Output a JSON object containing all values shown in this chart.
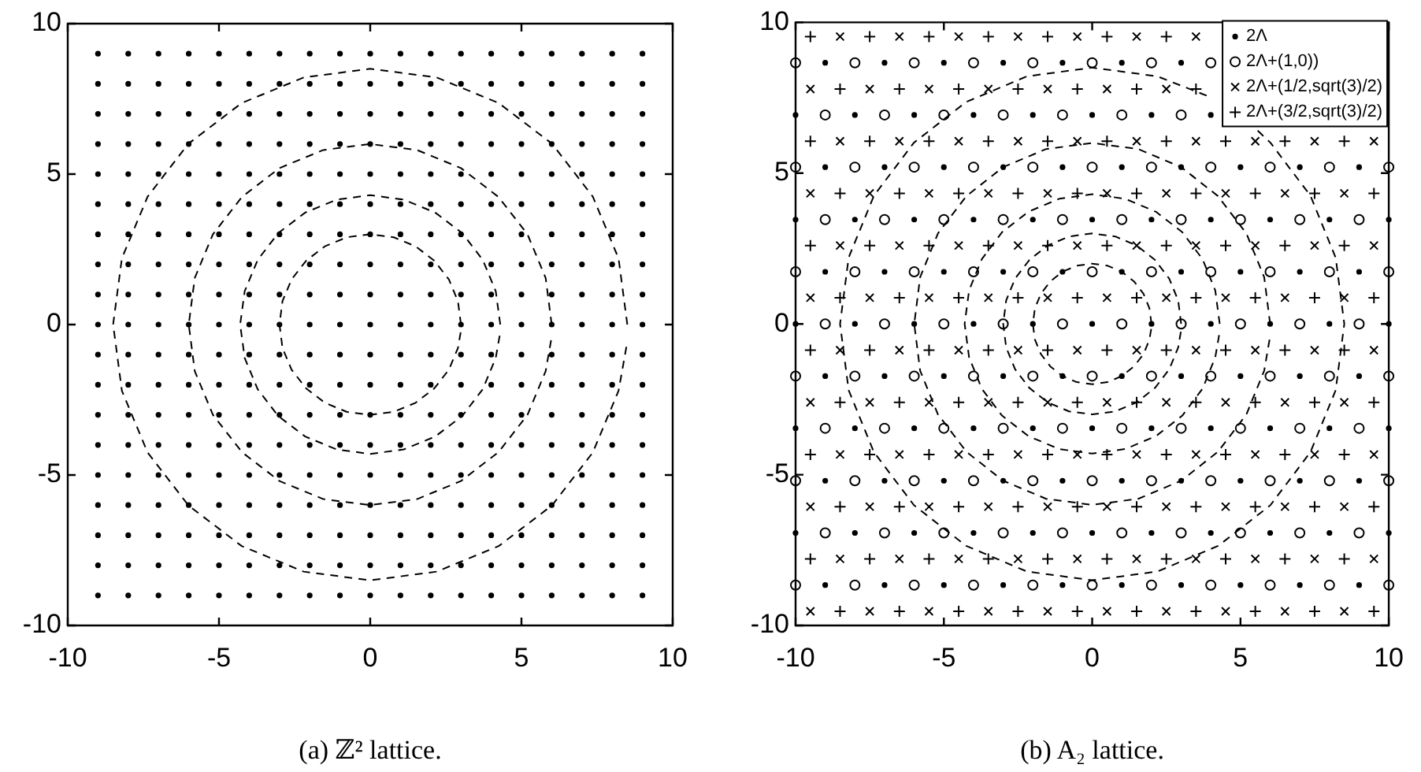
{
  "chart_data": [
    {
      "type": "scatter",
      "annotations": [
        "(a) ℤ² lattice."
      ],
      "xlim": [
        -10,
        10
      ],
      "ylim": [
        -10,
        10
      ],
      "xticks": [
        -10,
        -5,
        0,
        5,
        10
      ],
      "yticks": [
        -10,
        -5,
        0,
        5,
        10
      ],
      "grid": false,
      "legend": false,
      "series": [
        {
          "color": "#000000",
          "x": [
            -9,
            -8,
            -7,
            -6,
            -5,
            -4,
            -3,
            -2,
            -1,
            0,
            1,
            2,
            3,
            4,
            5,
            6,
            7,
            8,
            9,
            -9,
            -8,
            -7,
            -6,
            -5,
            -4,
            -3,
            -2,
            -1,
            0,
            1,
            2,
            3,
            4,
            5,
            6,
            7,
            8,
            9,
            -9,
            -8,
            -7,
            -6,
            -5,
            -4,
            -3,
            -2,
            -1,
            0,
            1,
            2,
            3,
            4,
            5,
            6,
            7,
            8,
            9,
            -9,
            -8,
            -7,
            -6,
            -5,
            -4,
            -3,
            -2,
            -1,
            0,
            1,
            2,
            3,
            4,
            5,
            6,
            7,
            8,
            9,
            -9,
            -8,
            -7,
            -6,
            -5,
            -4,
            -3,
            -2,
            -1,
            0,
            1,
            2,
            3,
            4,
            5,
            6,
            7,
            8,
            9,
            -9,
            -8,
            -7,
            -6,
            -5,
            -4,
            -3,
            -2,
            -1,
            0,
            1,
            2,
            3,
            4,
            5,
            6,
            7,
            8,
            9,
            -9,
            -8,
            -7,
            -6,
            -5,
            -4,
            -3,
            -2,
            -1,
            0,
            1,
            2,
            3,
            4,
            5,
            6,
            7,
            8,
            9,
            -9,
            -8,
            -7,
            -6,
            -5,
            -4,
            -3,
            -2,
            -1,
            0,
            1,
            2,
            3,
            4,
            5,
            6,
            7,
            8,
            9,
            -9,
            -8,
            -7,
            -6,
            -5,
            -4,
            -3,
            -2,
            -1,
            0,
            1,
            2,
            3,
            4,
            5,
            6,
            7,
            8,
            9,
            -9,
            -8,
            -7,
            -6,
            -5,
            -4,
            -3,
            -2,
            -1,
            0,
            1,
            2,
            3,
            4,
            5,
            6,
            7,
            8,
            9,
            -9,
            -8,
            -7,
            -6,
            -5,
            -4,
            -3,
            -2,
            -1,
            0,
            1,
            2,
            3,
            4,
            5,
            6,
            7,
            8,
            9,
            -9,
            -8,
            -7,
            -6,
            -5,
            -4,
            -3,
            -2,
            -1,
            0,
            1,
            2,
            3,
            4,
            5,
            6,
            7,
            8,
            9,
            -9,
            -8,
            -7,
            -6,
            -5,
            -4,
            -3,
            -2,
            -1,
            0,
            1,
            2,
            3,
            4,
            5,
            6,
            7,
            8,
            9,
            -9,
            -8,
            -7,
            -6,
            -5,
            -4,
            -3,
            -2,
            -1,
            0,
            1,
            2,
            3,
            4,
            5,
            6,
            7,
            8,
            9,
            -9,
            -8,
            -7,
            -6,
            -5,
            -4,
            -3,
            -2,
            -1,
            0,
            1,
            2,
            3,
            4,
            5,
            6,
            7,
            8,
            9,
            -9,
            -8,
            -7,
            -6,
            -5,
            -4,
            -3,
            -2,
            -1,
            0,
            1,
            2,
            3,
            4,
            5,
            6,
            7,
            8,
            9,
            -9,
            -8,
            -7,
            -6,
            -5,
            -4,
            -3,
            -2,
            -1,
            0,
            1,
            2,
            3,
            4,
            5,
            6,
            7,
            8,
            9,
            -9,
            -8,
            -7,
            -6,
            -5,
            -4,
            -3,
            -2,
            -1,
            0,
            1,
            2,
            3,
            4,
            5,
            6,
            7,
            8,
            9,
            -9,
            -8,
            -7,
            -6,
            -5,
            -4,
            -3,
            -2,
            -1,
            0,
            1,
            2,
            3,
            4,
            5,
            6,
            7,
            8,
            9
          ],
          "values": [
            9,
            9,
            9,
            9,
            9,
            9,
            9,
            9,
            9,
            9,
            9,
            9,
            9,
            9,
            9,
            9,
            9,
            9,
            9,
            8,
            8,
            8,
            8,
            8,
            8,
            8,
            8,
            8,
            8,
            8,
            8,
            8,
            8,
            8,
            8,
            8,
            8,
            8,
            7,
            7,
            7,
            7,
            7,
            7,
            7,
            7,
            7,
            7,
            7,
            7,
            7,
            7,
            7,
            7,
            7,
            7,
            7,
            6,
            6,
            6,
            6,
            6,
            6,
            6,
            6,
            6,
            6,
            6,
            6,
            6,
            6,
            6,
            6,
            6,
            6,
            6,
            5,
            5,
            5,
            5,
            5,
            5,
            5,
            5,
            5,
            5,
            5,
            5,
            5,
            5,
            5,
            5,
            5,
            5,
            5,
            4,
            4,
            4,
            4,
            4,
            4,
            4,
            4,
            4,
            4,
            4,
            4,
            4,
            4,
            4,
            4,
            4,
            4,
            4,
            3,
            3,
            3,
            3,
            3,
            3,
            3,
            3,
            3,
            3,
            3,
            3,
            3,
            3,
            3,
            3,
            3,
            3,
            3,
            2,
            2,
            2,
            2,
            2,
            2,
            2,
            2,
            2,
            2,
            2,
            2,
            2,
            2,
            2,
            2,
            2,
            2,
            2,
            1,
            1,
            1,
            1,
            1,
            1,
            1,
            1,
            1,
            1,
            1,
            1,
            1,
            1,
            1,
            1,
            1,
            1,
            1,
            0,
            0,
            0,
            0,
            0,
            0,
            0,
            0,
            0,
            0,
            0,
            0,
            0,
            0,
            0,
            0,
            0,
            0,
            0,
            -1,
            -1,
            -1,
            -1,
            -1,
            -1,
            -1,
            -1,
            -1,
            -1,
            -1,
            -1,
            -1,
            -1,
            -1,
            -1,
            -1,
            -1,
            -1,
            -2,
            -2,
            -2,
            -2,
            -2,
            -2,
            -2,
            -2,
            -2,
            -2,
            -2,
            -2,
            -2,
            -2,
            -2,
            -2,
            -2,
            -2,
            -2,
            -3,
            -3,
            -3,
            -3,
            -3,
            -3,
            -3,
            -3,
            -3,
            -3,
            -3,
            -3,
            -3,
            -3,
            -3,
            -3,
            -3,
            -3,
            -3,
            -4,
            -4,
            -4,
            -4,
            -4,
            -4,
            -4,
            -4,
            -4,
            -4,
            -4,
            -4,
            -4,
            -4,
            -4,
            -4,
            -4,
            -4,
            -4,
            -5,
            -5,
            -5,
            -5,
            -5,
            -5,
            -5,
            -5,
            -5,
            -5,
            -5,
            -5,
            -5,
            -5,
            -5,
            -5,
            -5,
            -5,
            -5,
            -6,
            -6,
            -6,
            -6,
            -6,
            -6,
            -6,
            -6,
            -6,
            -6,
            -6,
            -6,
            -6,
            -6,
            -6,
            -6,
            -6,
            -6,
            -6,
            -7,
            -7,
            -7,
            -7,
            -7,
            -7,
            -7,
            -7,
            -7,
            -7,
            -7,
            -7,
            -7,
            -7,
            -7,
            -7,
            -7,
            -7,
            -7,
            -8,
            -8,
            -8,
            -8,
            -8,
            -8,
            -8,
            -8,
            -8,
            -8,
            -8,
            -8,
            -8,
            -8,
            -8,
            -8,
            -8,
            -8,
            -8,
            -9,
            -9,
            -9,
            -9,
            -9,
            -9,
            -9,
            -9,
            -9,
            -9,
            -9,
            -9,
            -9,
            -9,
            -9,
            -9,
            -9,
            -9,
            -9
          ]
        },
        {
          "type": "line",
          "color": "#000000",
          "marker": "none",
          "line_style": "dashed",
          "x": [
            3,
            2.9,
            2.6,
            2.12,
            1.5,
            0.78,
            0,
            -0.78,
            -1.5,
            -2.12,
            -2.6,
            -2.9,
            -3,
            -2.9,
            -2.6,
            -2.12,
            -1.5,
            -0.78,
            0,
            0.78,
            1.5,
            2.12,
            2.6,
            2.9,
            2.99
          ],
          "values": [
            0,
            0.78,
            1.5,
            2.12,
            2.6,
            2.9,
            3,
            2.9,
            2.6,
            2.12,
            1.5,
            0.78,
            0,
            -0.78,
            -1.5,
            -2.12,
            -2.6,
            -2.9,
            -3,
            -2.9,
            -2.6,
            -2.12,
            -1.5,
            -0.78,
            -0.26
          ]
        },
        {
          "type": "line",
          "color": "#000000",
          "marker": "none",
          "line_style": "dashed",
          "x": [
            4.3,
            4.15,
            3.72,
            3.04,
            2.15,
            1.11,
            0,
            -1.11,
            -2.15,
            -3.04,
            -3.72,
            -4.15,
            -4.3,
            -4.15,
            -3.72,
            -3.04,
            -2.15,
            -1.11,
            0,
            1.11,
            2.15,
            3.04,
            3.72,
            4.15,
            4.28
          ],
          "values": [
            0,
            1.11,
            2.15,
            3.04,
            3.72,
            4.15,
            4.3,
            4.15,
            3.72,
            3.04,
            2.15,
            1.11,
            0,
            -1.11,
            -2.15,
            -3.04,
            -3.72,
            -4.15,
            -4.3,
            -4.15,
            -3.72,
            -3.04,
            -2.15,
            -1.11,
            -0.37
          ]
        },
        {
          "type": "line",
          "color": "#000000",
          "marker": "none",
          "line_style": "dashed",
          "x": [
            6,
            5.8,
            5.2,
            4.24,
            3,
            1.55,
            0,
            -1.55,
            -3,
            -4.24,
            -5.2,
            -5.8,
            -6,
            -5.8,
            -5.2,
            -4.24,
            -3,
            -1.55,
            0,
            1.55,
            3,
            4.24,
            5.2,
            5.8,
            5.98
          ],
          "values": [
            0,
            1.55,
            3,
            4.24,
            5.2,
            5.8,
            6,
            5.8,
            5.2,
            4.24,
            3,
            1.55,
            0,
            -1.55,
            -3,
            -4.24,
            -5.2,
            -5.8,
            -6,
            -5.8,
            -5.2,
            -4.24,
            -3,
            -1.55,
            -0.52
          ]
        },
        {
          "type": "line",
          "color": "#000000",
          "marker": "none",
          "line_style": "dashed",
          "x": [
            8.5,
            8.21,
            7.36,
            6.01,
            4.25,
            2.2,
            0,
            -2.2,
            -4.25,
            -6.01,
            -7.36,
            -8.21,
            -8.5,
            -8.21,
            -7.36,
            -6.01,
            -4.25,
            -2.2,
            0,
            2.2,
            4.25,
            6.01,
            7.36,
            8.21,
            8.47
          ],
          "values": [
            0,
            2.2,
            4.25,
            6.01,
            7.36,
            8.21,
            8.5,
            8.21,
            7.36,
            6.01,
            4.25,
            2.2,
            0,
            -2.2,
            -4.25,
            -6.01,
            -7.36,
            -8.21,
            -8.5,
            -8.21,
            -7.36,
            -6.01,
            -4.25,
            -2.2,
            -0.74
          ]
        }
      ]
    },
    {
      "type": "scatter",
      "annotations": [
        "(b) A₂ lattice."
      ],
      "xlim": [
        -10,
        10
      ],
      "ylim": [
        -10,
        10
      ],
      "xticks": [
        -10,
        -5,
        0,
        5,
        10
      ],
      "yticks": [
        -10,
        -5,
        0,
        5,
        10
      ],
      "grid": false,
      "legend": "top right",
      "series": [
        {
          "name": "2Λ",
          "color": "#000000",
          "x": [
            -9,
            -7,
            -5,
            -3,
            -1,
            1,
            3,
            -10,
            -8,
            -6,
            -4,
            -2,
            0,
            2,
            4,
            -9,
            -7,
            -5,
            -3,
            -1,
            1,
            3,
            5,
            7,
            9,
            -10,
            -8,
            -6,
            -4,
            -2,
            0,
            2,
            4,
            6,
            8,
            10,
            -9,
            -7,
            -5,
            -3,
            -1,
            1,
            3,
            5,
            7,
            9,
            -10,
            -8,
            -6,
            -4,
            -2,
            0,
            2,
            4,
            6,
            8,
            10,
            -9,
            -7,
            -5,
            -3,
            -1,
            1,
            3,
            5,
            7,
            9,
            -10,
            -8,
            -6,
            -4,
            -2,
            0,
            2,
            4,
            6,
            8,
            10,
            -9,
            -7,
            -5,
            -3,
            -1,
            1,
            3,
            5,
            7,
            9,
            -10,
            -8,
            -6,
            -4,
            -2,
            0,
            2,
            4,
            6,
            8,
            10,
            -9,
            -7,
            -5,
            -3,
            -1,
            1,
            3,
            5,
            7,
            9
          ],
          "values": [
            8.66,
            8.66,
            8.66,
            8.66,
            8.66,
            8.66,
            8.66,
            6.93,
            6.93,
            6.93,
            6.93,
            6.93,
            6.93,
            6.93,
            6.93,
            5.2,
            5.2,
            5.2,
            5.2,
            5.2,
            5.2,
            5.2,
            5.2,
            5.2,
            5.2,
            3.46,
            3.46,
            3.46,
            3.46,
            3.46,
            3.46,
            3.46,
            3.46,
            3.46,
            3.46,
            3.46,
            1.73,
            1.73,
            1.73,
            1.73,
            1.73,
            1.73,
            1.73,
            1.73,
            1.73,
            1.73,
            0,
            0,
            0,
            0,
            0,
            0,
            0,
            0,
            0,
            0,
            0,
            -1.73,
            -1.73,
            -1.73,
            -1.73,
            -1.73,
            -1.73,
            -1.73,
            -1.73,
            -1.73,
            -1.73,
            -3.46,
            -3.46,
            -3.46,
            -3.46,
            -3.46,
            -3.46,
            -3.46,
            -3.46,
            -3.46,
            -3.46,
            -3.46,
            -5.2,
            -5.2,
            -5.2,
            -5.2,
            -5.2,
            -5.2,
            -5.2,
            -5.2,
            -5.2,
            -5.2,
            -6.93,
            -6.93,
            -6.93,
            -6.93,
            -6.93,
            -6.93,
            -6.93,
            -6.93,
            -6.93,
            -6.93,
            -6.93,
            -8.66,
            -8.66,
            -8.66,
            -8.66,
            -8.66,
            -8.66,
            -8.66,
            -8.66,
            -8.66,
            -8.66
          ]
        },
        {
          "name": "2Λ+(1,0))",
          "color": "#000000",
          "marker": "circle",
          "x": [
            -10,
            -8,
            -6,
            -4,
            -2,
            0,
            2,
            4,
            -9,
            -7,
            -5,
            -3,
            -1,
            1,
            3,
            -10,
            -8,
            -6,
            -4,
            -2,
            0,
            2,
            4,
            6,
            8,
            10,
            -9,
            -7,
            -5,
            -3,
            -1,
            1,
            3,
            5,
            7,
            9,
            -10,
            -8,
            -6,
            -4,
            -2,
            0,
            2,
            4,
            6,
            8,
            10,
            -9,
            -7,
            -5,
            -3,
            -1,
            1,
            3,
            5,
            7,
            9,
            -10,
            -8,
            -6,
            -4,
            -2,
            0,
            2,
            4,
            6,
            8,
            10,
            -9,
            -7,
            -5,
            -3,
            -1,
            1,
            3,
            5,
            7,
            9,
            -10,
            -8,
            -6,
            -4,
            -2,
            0,
            2,
            4,
            6,
            8,
            10,
            -9,
            -7,
            -5,
            -3,
            -1,
            1,
            3,
            5,
            7,
            9,
            -10,
            -8,
            -6,
            -4,
            -2,
            0,
            2,
            4,
            6,
            8,
            10
          ],
          "values": [
            8.66,
            8.66,
            8.66,
            8.66,
            8.66,
            8.66,
            8.66,
            8.66,
            6.93,
            6.93,
            6.93,
            6.93,
            6.93,
            6.93,
            6.93,
            5.2,
            5.2,
            5.2,
            5.2,
            5.2,
            5.2,
            5.2,
            5.2,
            5.2,
            5.2,
            5.2,
            3.46,
            3.46,
            3.46,
            3.46,
            3.46,
            3.46,
            3.46,
            3.46,
            3.46,
            3.46,
            1.73,
            1.73,
            1.73,
            1.73,
            1.73,
            1.73,
            1.73,
            1.73,
            1.73,
            1.73,
            1.73,
            0,
            0,
            0,
            0,
            0,
            0,
            0,
            0,
            0,
            0,
            -1.73,
            -1.73,
            -1.73,
            -1.73,
            -1.73,
            -1.73,
            -1.73,
            -1.73,
            -1.73,
            -1.73,
            -1.73,
            -3.46,
            -3.46,
            -3.46,
            -3.46,
            -3.46,
            -3.46,
            -3.46,
            -3.46,
            -3.46,
            -3.46,
            -5.2,
            -5.2,
            -5.2,
            -5.2,
            -5.2,
            -5.2,
            -5.2,
            -5.2,
            -5.2,
            -5.2,
            -5.2,
            -6.93,
            -6.93,
            -6.93,
            -6.93,
            -6.93,
            -6.93,
            -6.93,
            -6.93,
            -6.93,
            -6.93,
            -8.66,
            -8.66,
            -8.66,
            -8.66,
            -8.66,
            -8.66,
            -8.66,
            -8.66,
            -8.66,
            -8.66,
            -8.66
          ]
        },
        {
          "name": "2Λ+(1/2,sqrt(3)/2)",
          "color": "#000000",
          "marker": "x",
          "x": [
            -8.5,
            -6.5,
            -4.5,
            -2.5,
            -0.5,
            1.5,
            3.5,
            -9.5,
            -7.5,
            -5.5,
            -3.5,
            -1.5,
            0.5,
            2.5,
            -8.5,
            -6.5,
            -4.5,
            -2.5,
            -0.5,
            1.5,
            3.5,
            5.5,
            7.5,
            9.5,
            -9.5,
            -7.5,
            -5.5,
            -3.5,
            -1.5,
            0.5,
            2.5,
            4.5,
            6.5,
            8.5,
            -8.5,
            -6.5,
            -4.5,
            -2.5,
            -0.5,
            1.5,
            3.5,
            5.5,
            7.5,
            9.5,
            -9.5,
            -7.5,
            -5.5,
            -3.5,
            -1.5,
            0.5,
            2.5,
            4.5,
            6.5,
            8.5,
            -8.5,
            -6.5,
            -4.5,
            -2.5,
            -0.5,
            1.5,
            3.5,
            5.5,
            7.5,
            9.5,
            -9.5,
            -7.5,
            -5.5,
            -3.5,
            -1.5,
            0.5,
            2.5,
            4.5,
            6.5,
            8.5,
            -8.5,
            -6.5,
            -4.5,
            -2.5,
            -0.5,
            1.5,
            3.5,
            5.5,
            7.5,
            9.5,
            -9.5,
            -7.5,
            -5.5,
            -3.5,
            -1.5,
            0.5,
            2.5,
            4.5,
            6.5,
            8.5,
            -8.5,
            -6.5,
            -4.5,
            -2.5,
            -0.5,
            1.5,
            3.5,
            5.5,
            7.5,
            9.5,
            -9.5,
            -7.5,
            -5.5,
            -3.5,
            -1.5,
            0.5,
            2.5,
            4.5,
            6.5,
            8.5
          ],
          "values": [
            9.53,
            9.53,
            9.53,
            9.53,
            9.53,
            9.53,
            9.53,
            7.79,
            7.79,
            7.79,
            7.79,
            7.79,
            7.79,
            7.79,
            6.06,
            6.06,
            6.06,
            6.06,
            6.06,
            6.06,
            6.06,
            6.06,
            6.06,
            6.06,
            4.33,
            4.33,
            4.33,
            4.33,
            4.33,
            4.33,
            4.33,
            4.33,
            4.33,
            4.33,
            2.6,
            2.6,
            2.6,
            2.6,
            2.6,
            2.6,
            2.6,
            2.6,
            2.6,
            2.6,
            0.87,
            0.87,
            0.87,
            0.87,
            0.87,
            0.87,
            0.87,
            0.87,
            0.87,
            0.87,
            -0.87,
            -0.87,
            -0.87,
            -0.87,
            -0.87,
            -0.87,
            -0.87,
            -0.87,
            -0.87,
            -0.87,
            -2.6,
            -2.6,
            -2.6,
            -2.6,
            -2.6,
            -2.6,
            -2.6,
            -2.6,
            -2.6,
            -2.6,
            -4.33,
            -4.33,
            -4.33,
            -4.33,
            -4.33,
            -4.33,
            -4.33,
            -4.33,
            -4.33,
            -4.33,
            -6.06,
            -6.06,
            -6.06,
            -6.06,
            -6.06,
            -6.06,
            -6.06,
            -6.06,
            -6.06,
            -6.06,
            -7.79,
            -7.79,
            -7.79,
            -7.79,
            -7.79,
            -7.79,
            -7.79,
            -7.79,
            -7.79,
            -7.79,
            -9.53,
            -9.53,
            -9.53,
            -9.53,
            -9.53,
            -9.53,
            -9.53,
            -9.53,
            -9.53,
            -9.53
          ]
        },
        {
          "name": "2Λ+(3/2,sqrt(3)/2)",
          "color": "#000000",
          "marker": "cross",
          "x": [
            -9.5,
            -7.5,
            -5.5,
            -3.5,
            -1.5,
            0.5,
            2.5,
            -8.5,
            -6.5,
            -4.5,
            -2.5,
            -0.5,
            1.5,
            3.5,
            -9.5,
            -7.5,
            -5.5,
            -3.5,
            -1.5,
            0.5,
            2.5,
            4.5,
            6.5,
            8.5,
            -8.5,
            -6.5,
            -4.5,
            -2.5,
            -0.5,
            1.5,
            3.5,
            5.5,
            7.5,
            9.5,
            -9.5,
            -7.5,
            -5.5,
            -3.5,
            -1.5,
            0.5,
            2.5,
            4.5,
            6.5,
            8.5,
            -8.5,
            -6.5,
            -4.5,
            -2.5,
            -0.5,
            1.5,
            3.5,
            5.5,
            7.5,
            9.5,
            -9.5,
            -7.5,
            -5.5,
            -3.5,
            -1.5,
            0.5,
            2.5,
            4.5,
            6.5,
            8.5,
            -8.5,
            -6.5,
            -4.5,
            -2.5,
            -0.5,
            1.5,
            3.5,
            5.5,
            7.5,
            9.5,
            -9.5,
            -7.5,
            -5.5,
            -3.5,
            -1.5,
            0.5,
            2.5,
            4.5,
            6.5,
            8.5,
            -8.5,
            -6.5,
            -4.5,
            -2.5,
            -0.5,
            1.5,
            3.5,
            5.5,
            7.5,
            9.5,
            -9.5,
            -7.5,
            -5.5,
            -3.5,
            -1.5,
            0.5,
            2.5,
            4.5,
            6.5,
            8.5,
            -8.5,
            -6.5,
            -4.5,
            -2.5,
            -0.5,
            1.5,
            3.5,
            5.5,
            7.5,
            9.5
          ],
          "values": [
            9.53,
            9.53,
            9.53,
            9.53,
            9.53,
            9.53,
            9.53,
            7.79,
            7.79,
            7.79,
            7.79,
            7.79,
            7.79,
            7.79,
            6.06,
            6.06,
            6.06,
            6.06,
            6.06,
            6.06,
            6.06,
            6.06,
            6.06,
            6.06,
            4.33,
            4.33,
            4.33,
            4.33,
            4.33,
            4.33,
            4.33,
            4.33,
            4.33,
            4.33,
            2.6,
            2.6,
            2.6,
            2.6,
            2.6,
            2.6,
            2.6,
            2.6,
            2.6,
            2.6,
            0.87,
            0.87,
            0.87,
            0.87,
            0.87,
            0.87,
            0.87,
            0.87,
            0.87,
            0.87,
            -0.87,
            -0.87,
            -0.87,
            -0.87,
            -0.87,
            -0.87,
            -0.87,
            -0.87,
            -0.87,
            -0.87,
            -2.6,
            -2.6,
            -2.6,
            -2.6,
            -2.6,
            -2.6,
            -2.6,
            -2.6,
            -2.6,
            -2.6,
            -4.33,
            -4.33,
            -4.33,
            -4.33,
            -4.33,
            -4.33,
            -4.33,
            -4.33,
            -4.33,
            -4.33,
            -6.06,
            -6.06,
            -6.06,
            -6.06,
            -6.06,
            -6.06,
            -6.06,
            -6.06,
            -6.06,
            -6.06,
            -7.79,
            -7.79,
            -7.79,
            -7.79,
            -7.79,
            -7.79,
            -7.79,
            -7.79,
            -7.79,
            -7.79,
            -9.53,
            -9.53,
            -9.53,
            -9.53,
            -9.53,
            -9.53,
            -9.53,
            -9.53,
            -9.53,
            -9.53
          ]
        },
        {
          "type": "line",
          "color": "#000000",
          "marker": "none",
          "line_style": "dashed",
          "x": [
            2,
            1.93,
            1.73,
            1.41,
            1,
            0.52,
            0,
            -0.52,
            -1,
            -1.41,
            -1.73,
            -1.93,
            -2,
            -1.93,
            -1.73,
            -1.41,
            -1,
            -0.52,
            0,
            0.52,
            1,
            1.41,
            1.73,
            1.93,
            1.99
          ],
          "values": [
            0,
            0.52,
            1,
            1.41,
            1.73,
            1.93,
            2,
            1.93,
            1.73,
            1.41,
            1,
            0.52,
            0,
            -0.52,
            -1,
            -1.41,
            -1.73,
            -1.93,
            -2,
            -1.93,
            -1.73,
            -1.41,
            -1,
            -0.52,
            -0.17
          ]
        },
        {
          "type": "line",
          "color": "#000000",
          "marker": "none",
          "line_style": "dashed",
          "x": [
            3,
            2.9,
            2.6,
            2.12,
            1.5,
            0.78,
            0,
            -0.78,
            -1.5,
            -2.12,
            -2.6,
            -2.9,
            -3,
            -2.9,
            -2.6,
            -2.12,
            -1.5,
            -0.78,
            0,
            0.78,
            1.5,
            2.12,
            2.6,
            2.9,
            2.99
          ],
          "values": [
            0,
            0.78,
            1.5,
            2.12,
            2.6,
            2.9,
            3,
            2.9,
            2.6,
            2.12,
            1.5,
            0.78,
            0,
            -0.78,
            -1.5,
            -2.12,
            -2.6,
            -2.9,
            -3,
            -2.9,
            -2.6,
            -2.12,
            -1.5,
            -0.78,
            -0.26
          ]
        },
        {
          "type": "line",
          "color": "#000000",
          "marker": "none",
          "line_style": "dashed",
          "x": [
            4.3,
            4.15,
            3.72,
            3.04,
            2.15,
            1.11,
            0,
            -1.11,
            -2.15,
            -3.04,
            -3.72,
            -4.15,
            -4.3,
            -4.15,
            -3.72,
            -3.04,
            -2.15,
            -1.11,
            0,
            1.11,
            2.15,
            3.04,
            3.72,
            4.15,
            4.28
          ],
          "values": [
            0,
            1.11,
            2.15,
            3.04,
            3.72,
            4.15,
            4.3,
            4.15,
            3.72,
            3.04,
            2.15,
            1.11,
            0,
            -1.11,
            -2.15,
            -3.04,
            -3.72,
            -4.15,
            -4.3,
            -4.15,
            -3.72,
            -3.04,
            -2.15,
            -1.11,
            -0.37
          ]
        },
        {
          "type": "line",
          "color": "#000000",
          "marker": "none",
          "line_style": "dashed",
          "x": [
            6,
            5.8,
            5.2,
            4.24,
            3,
            1.55,
            0,
            -1.55,
            -3,
            -4.24,
            -5.2,
            -5.8,
            -6,
            -5.8,
            -5.2,
            -4.24,
            -3,
            -1.55,
            0,
            1.55,
            3,
            4.24,
            5.2,
            5.8,
            5.98
          ],
          "values": [
            0,
            1.55,
            3,
            4.24,
            5.2,
            5.8,
            6,
            5.8,
            5.2,
            4.24,
            3,
            1.55,
            0,
            -1.55,
            -3,
            -4.24,
            -5.2,
            -5.8,
            -6,
            -5.8,
            -5.2,
            -4.24,
            -3,
            -1.55,
            -0.52
          ]
        },
        {
          "type": "line",
          "color": "#000000",
          "marker": "none",
          "line_style": "dashed",
          "x": [
            3.86,
            2.2,
            0,
            -2.2,
            -4.25,
            -6.01,
            -7.36,
            -8.21,
            -8.5,
            -8.21,
            -7.36,
            -6.01,
            -4.25,
            -2.2,
            0,
            2.2,
            4.25,
            6.01,
            7.36,
            8.21,
            8.5,
            8.21,
            7.36,
            6.01,
            5.58
          ],
          "values": [
            7.57,
            8.21,
            8.5,
            8.21,
            7.36,
            6.01,
            4.25,
            2.2,
            0,
            -2.2,
            -4.25,
            -6.01,
            -7.36,
            -8.21,
            -8.5,
            -8.21,
            -7.36,
            -6.01,
            -4.25,
            -2.2,
            0,
            2.2,
            4.25,
            6.01,
            6.41
          ]
        }
      ]
    }
  ]
}
